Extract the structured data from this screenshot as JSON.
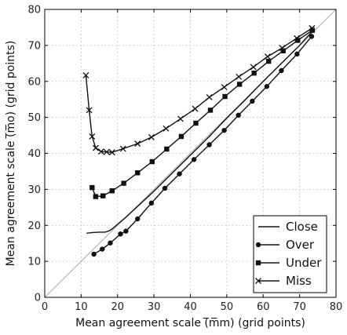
{
  "chart_data": {
    "type": "line",
    "title": "",
    "xlabel": "Mean agreement scale (̅m̅m) (grid points)",
    "ylabel": "Mean agreement scale (̅m̅o) (grid points)",
    "xlim": [
      0,
      80
    ],
    "ylim": [
      0,
      80
    ],
    "xticks": [
      0,
      10,
      20,
      30,
      40,
      50,
      60,
      70,
      80
    ],
    "yticks": [
      0,
      10,
      20,
      30,
      40,
      50,
      60,
      70,
      80
    ],
    "grid": true,
    "legend_position": "bottom-right",
    "reference_line": {
      "type": "identity",
      "color": "#aaaaaa"
    },
    "series": [
      {
        "name": "Close",
        "marker": "none",
        "x": [
          11.5,
          13.0,
          15.0,
          16.5,
          17.5,
          18.5,
          20.0,
          22.0,
          25.0,
          30.0,
          35.0,
          40.0,
          45.0,
          50.0,
          55.0,
          60.0,
          65.0,
          70.0,
          74.0
        ],
        "y": [
          17.8,
          18.0,
          18.1,
          18.1,
          18.4,
          19.0,
          20.3,
          22.0,
          24.8,
          29.5,
          34.5,
          39.5,
          44.5,
          49.8,
          54.8,
          60.0,
          65.0,
          70.0,
          74.5
        ]
      },
      {
        "name": "Over",
        "marker": "circle",
        "x": [
          13.5,
          15.8,
          18.0,
          20.8,
          22.3,
          25.5,
          29.3,
          33.0,
          37.0,
          41.0,
          45.2,
          49.3,
          53.2,
          57.0,
          61.0,
          65.0,
          69.3,
          73.3
        ],
        "y": [
          12.0,
          13.4,
          15.1,
          17.6,
          18.4,
          21.8,
          26.2,
          30.3,
          34.3,
          38.3,
          42.4,
          46.4,
          50.6,
          54.5,
          58.6,
          63.0,
          67.6,
          72.5
        ]
      },
      {
        "name": "Under",
        "marker": "square",
        "x": [
          13.0,
          14.0,
          16.0,
          18.5,
          21.7,
          25.5,
          29.5,
          33.5,
          37.5,
          41.5,
          45.5,
          49.5,
          53.5,
          57.5,
          61.5,
          65.5,
          69.5,
          73.5
        ],
        "y": [
          30.5,
          28.0,
          28.2,
          29.6,
          31.7,
          34.6,
          37.7,
          41.2,
          44.7,
          48.4,
          52.0,
          55.8,
          59.2,
          62.3,
          65.6,
          68.5,
          71.4,
          74.2
        ]
      },
      {
        "name": "Miss",
        "marker": "x",
        "x": [
          11.3,
          12.2,
          13.0,
          14.0,
          15.5,
          17.0,
          18.5,
          21.5,
          25.5,
          29.3,
          33.3,
          37.3,
          41.3,
          45.2,
          49.3,
          53.3,
          57.3,
          61.2,
          65.2,
          69.2,
          73.4
        ],
        "y": [
          61.7,
          52.0,
          44.7,
          41.5,
          40.5,
          40.4,
          40.3,
          41.3,
          42.7,
          44.5,
          46.9,
          49.6,
          52.4,
          55.6,
          58.4,
          61.3,
          64.0,
          66.9,
          69.3,
          72.0,
          74.8
        ]
      }
    ]
  }
}
